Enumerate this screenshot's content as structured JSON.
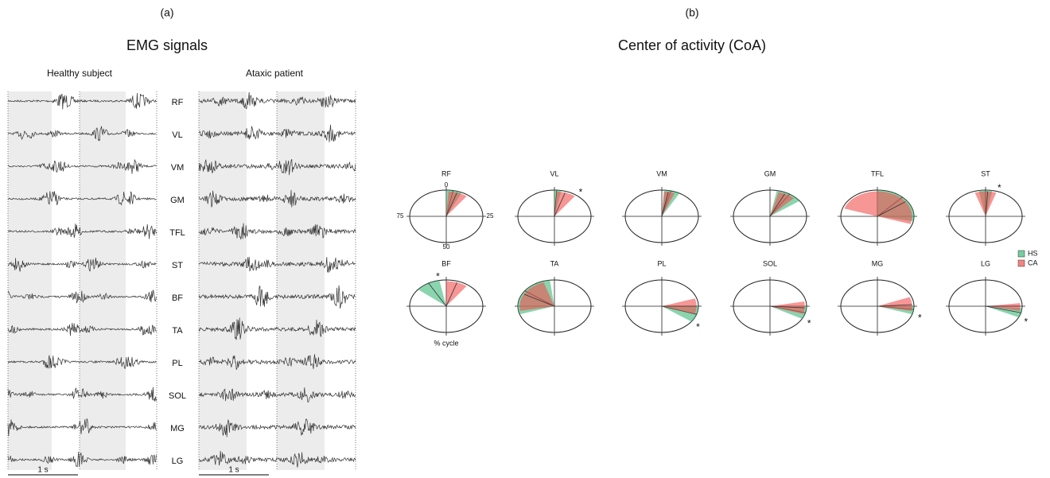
{
  "panel_a": {
    "label": "(a)",
    "title": "EMG signals",
    "groups": [
      "Healthy subject",
      "Ataxic patient"
    ],
    "muscles": [
      "RF",
      "VL",
      "VM",
      "GM",
      "TFL",
      "ST",
      "BF",
      "TA",
      "PL",
      "SOL",
      "MG",
      "LG"
    ],
    "scale_bar": "1 s"
  },
  "panel_b": {
    "label": "(b)",
    "title": "Center of activity (CoA)",
    "clock_ticks": [
      0,
      25,
      50,
      75
    ],
    "axis_label": "% cycle",
    "legend": [
      {
        "name": "HS",
        "color": "#3cb878"
      },
      {
        "name": "CA",
        "color": "#f0504f"
      }
    ],
    "muscles": [
      {
        "name": "RF",
        "hs": {
          "range": [
            0,
            7
          ],
          "mean": 3
        },
        "ca": {
          "range": [
            1,
            10
          ],
          "mean": 5
        }
      },
      {
        "name": "VL",
        "hs": {
          "range": [
            0,
            3
          ],
          "mean": 1
        },
        "ca": {
          "range": [
            1,
            10
          ],
          "mean": 5
        },
        "mark": "*"
      },
      {
        "name": "VM",
        "hs": {
          "range": [
            1,
            8
          ],
          "mean": 4
        },
        "ca": {
          "range": [
            1,
            6
          ],
          "mean": 3
        }
      },
      {
        "name": "GM",
        "hs": {
          "range": [
            3,
            15
          ],
          "mean": 9
        },
        "ca": {
          "range": [
            4,
            12
          ],
          "mean": 7
        }
      },
      {
        "name": "TFL",
        "hs": {
          "range": [
            0,
            28
          ],
          "mean": 12
        },
        "ca": {
          "range": [
            80,
            30
          ],
          "mean": 15
        }
      },
      {
        "name": "ST",
        "hs": {
          "range": [
            97,
            3
          ],
          "mean": 0
        },
        "ca": {
          "range": [
            95,
            5
          ],
          "mean": 1
        },
        "mark": "*"
      },
      {
        "name": "BF",
        "hs": {
          "range": [
            86,
            97
          ],
          "mean": 92
        },
        "ca": {
          "range": [
            0,
            10
          ],
          "mean": 5
        },
        "mark": "*"
      },
      {
        "name": "TA",
        "hs": {
          "range": [
            70,
            98
          ],
          "mean": 85
        },
        "ca": {
          "range": [
            72,
            95
          ],
          "mean": 83
        }
      },
      {
        "name": "PL",
        "hs": {
          "range": [
            25,
            35
          ],
          "mean": 30
        },
        "ca": {
          "range": [
            20,
            30
          ],
          "mean": 25
        },
        "mark": "*"
      },
      {
        "name": "SOL",
        "hs": {
          "range": [
            25,
            33
          ],
          "mean": 29
        },
        "ca": {
          "range": [
            22,
            30
          ],
          "mean": 26
        },
        "mark": "*"
      },
      {
        "name": "MG",
        "hs": {
          "range": [
            25,
            30
          ],
          "mean": 27
        },
        "ca": {
          "range": [
            19,
            28
          ],
          "mean": 24
        },
        "mark": "*"
      },
      {
        "name": "LG",
        "hs": {
          "range": [
            26,
            32
          ],
          "mean": 29
        },
        "ca": {
          "range": [
            23,
            28
          ],
          "mean": 25
        },
        "mark": "*"
      }
    ]
  }
}
